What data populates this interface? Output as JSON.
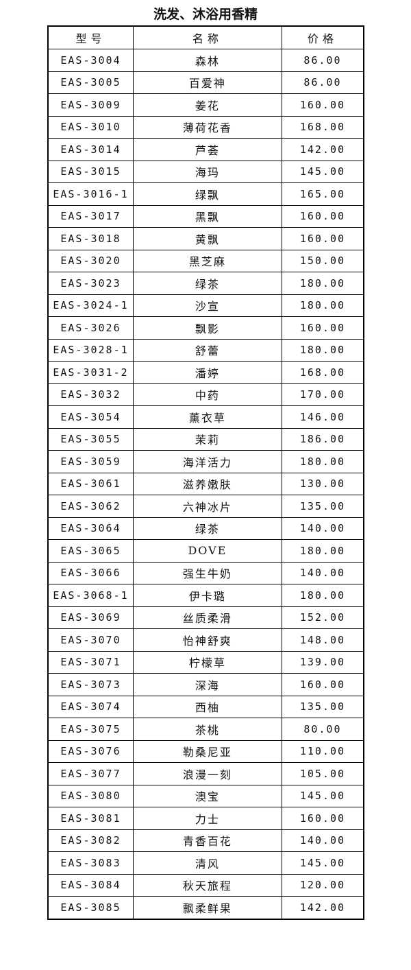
{
  "title": "洗发、沐浴用香精",
  "headers": [
    "型号",
    "名称",
    "价格"
  ],
  "rows": [
    [
      "EAS-3004",
      "森林",
      "86.00"
    ],
    [
      "EAS-3005",
      "百爱神",
      "86.00"
    ],
    [
      "EAS-3009",
      "姜花",
      "160.00"
    ],
    [
      "EAS-3010",
      "薄荷花香",
      "168.00"
    ],
    [
      "EAS-3014",
      "芦荟",
      "142.00"
    ],
    [
      "EAS-3015",
      "海玛",
      "145.00"
    ],
    [
      "EAS-3016-1",
      "绿飘",
      "165.00"
    ],
    [
      "EAS-3017",
      "黑飘",
      "160.00"
    ],
    [
      "EAS-3018",
      "黄飘",
      "160.00"
    ],
    [
      "EAS-3020",
      "黑芝麻",
      "150.00"
    ],
    [
      "EAS-3023",
      "绿茶",
      "180.00"
    ],
    [
      "EAS-3024-1",
      "沙宣",
      "180.00"
    ],
    [
      "EAS-3026",
      "飘影",
      "160.00"
    ],
    [
      "EAS-3028-1",
      "舒蕾",
      "180.00"
    ],
    [
      "EAS-3031-2",
      "潘婷",
      "168.00"
    ],
    [
      "EAS-3032",
      "中药",
      "170.00"
    ],
    [
      "EAS-3054",
      "薰衣草",
      "146.00"
    ],
    [
      "EAS-3055",
      "茉莉",
      "186.00"
    ],
    [
      "EAS-3059",
      "海洋活力",
      "180.00"
    ],
    [
      "EAS-3061",
      "滋养嫩肤",
      "130.00"
    ],
    [
      "EAS-3062",
      "六神冰片",
      "135.00"
    ],
    [
      "EAS-3064",
      "绿茶",
      "140.00"
    ],
    [
      "EAS-3065",
      "DOVE",
      "180.00"
    ],
    [
      "EAS-3066",
      "强生牛奶",
      "140.00"
    ],
    [
      "EAS-3068-1",
      "伊卡璐",
      "180.00"
    ],
    [
      "EAS-3069",
      "丝质柔滑",
      "152.00"
    ],
    [
      "EAS-3070",
      "怡神舒爽",
      "148.00"
    ],
    [
      "EAS-3071",
      "柠檬草",
      "139.00"
    ],
    [
      "EAS-3073",
      "深海",
      "160.00"
    ],
    [
      "EAS-3074",
      "西柚",
      "135.00"
    ],
    [
      "EAS-3075",
      "茶桃",
      "80.00"
    ],
    [
      "EAS-3076",
      "勒桑尼亚",
      "110.00"
    ],
    [
      "EAS-3077",
      "浪漫一刻",
      "105.00"
    ],
    [
      "EAS-3080",
      "澳宝",
      "145.00"
    ],
    [
      "EAS-3081",
      "力士",
      "160.00"
    ],
    [
      "EAS-3082",
      "青香百花",
      "140.00"
    ],
    [
      "EAS-3083",
      "清风",
      "145.00"
    ],
    [
      "EAS-3084",
      "秋天旅程",
      "120.00"
    ],
    [
      "EAS-3085",
      "飘柔鲜果",
      "142.00"
    ]
  ]
}
